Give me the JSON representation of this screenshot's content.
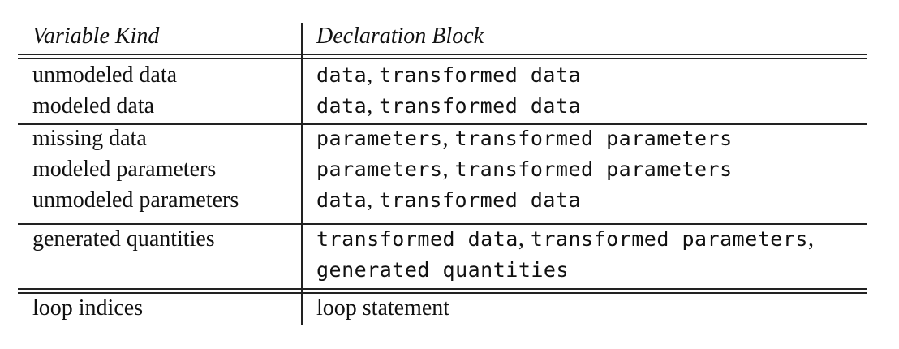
{
  "header": {
    "col1": "Variable Kind",
    "col2": "Declaration Block"
  },
  "rows": [
    {
      "kind": "unmodeled data",
      "blocks": [
        "data",
        "transformed data"
      ]
    },
    {
      "kind": "modeled data",
      "blocks": [
        "data",
        "transformed data"
      ]
    },
    {
      "kind": "missing data",
      "blocks": [
        "parameters",
        "transformed parameters"
      ]
    },
    {
      "kind": "modeled parameters",
      "blocks": [
        "parameters",
        "transformed parameters"
      ]
    },
    {
      "kind": "unmodeled parameters",
      "blocks": [
        "data",
        "transformed data"
      ]
    },
    {
      "kind": "generated quantities",
      "blocks": [
        "transformed data",
        "transformed parameters"
      ],
      "blocks_line2": "generated quantities"
    },
    {
      "kind": "loop indices",
      "block_text": "loop statement"
    }
  ],
  "separator": ","
}
